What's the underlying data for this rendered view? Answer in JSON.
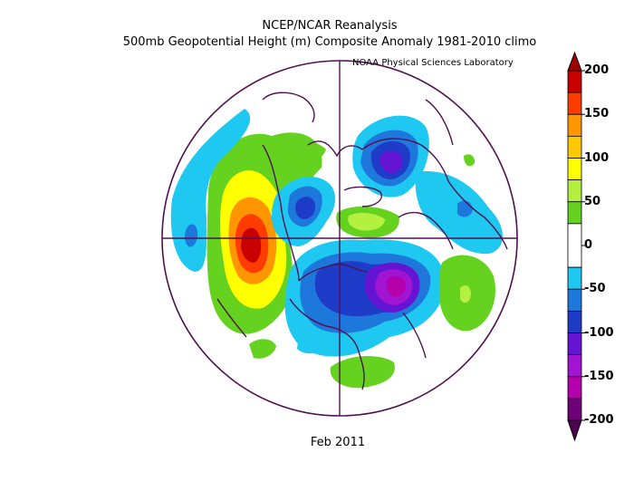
{
  "header": {
    "title_line1": "NCEP/NCAR Reanalysis",
    "title_line2": "500mb Geopotential Height (m) Composite Anomaly 1981-2010 climo",
    "credit": "NOAA Physical Sciences Laboratory"
  },
  "footer": {
    "date": "Feb 2011"
  },
  "colorbar": {
    "tick_labels": [
      "200",
      "150",
      "100",
      "50",
      "0",
      "-50",
      "-100",
      "-150",
      "-200"
    ],
    "bands": [
      {
        "from": 175,
        "to": 200,
        "color": "#c80000"
      },
      {
        "from": 150,
        "to": 175,
        "color": "#ff3c00"
      },
      {
        "from": 125,
        "to": 150,
        "color": "#ff9600"
      },
      {
        "from": 100,
        "to": 125,
        "color": "#ffc800"
      },
      {
        "from": 75,
        "to": 100,
        "color": "#ffff00"
      },
      {
        "from": 50,
        "to": 75,
        "color": "#b4f040"
      },
      {
        "from": 25,
        "to": 50,
        "color": "#64d21e"
      },
      {
        "from": -25,
        "to": 25,
        "color": "#ffffff"
      },
      {
        "from": -50,
        "to": -25,
        "color": "#1ec8f0"
      },
      {
        "from": -75,
        "to": -50,
        "color": "#1e78dc"
      },
      {
        "from": -100,
        "to": -75,
        "color": "#1e3cc8"
      },
      {
        "from": -125,
        "to": -100,
        "color": "#6414d2"
      },
      {
        "from": -150,
        "to": -125,
        "color": "#a014d2"
      },
      {
        "from": -175,
        "to": -150,
        "color": "#b400aa"
      },
      {
        "from": -200,
        "to": -175,
        "color": "#6e0078"
      }
    ],
    "over_color": "#a00000",
    "under_color": "#500050"
  },
  "colors": {
    "coastline": "#501050",
    "grid_line": "#501050"
  }
}
